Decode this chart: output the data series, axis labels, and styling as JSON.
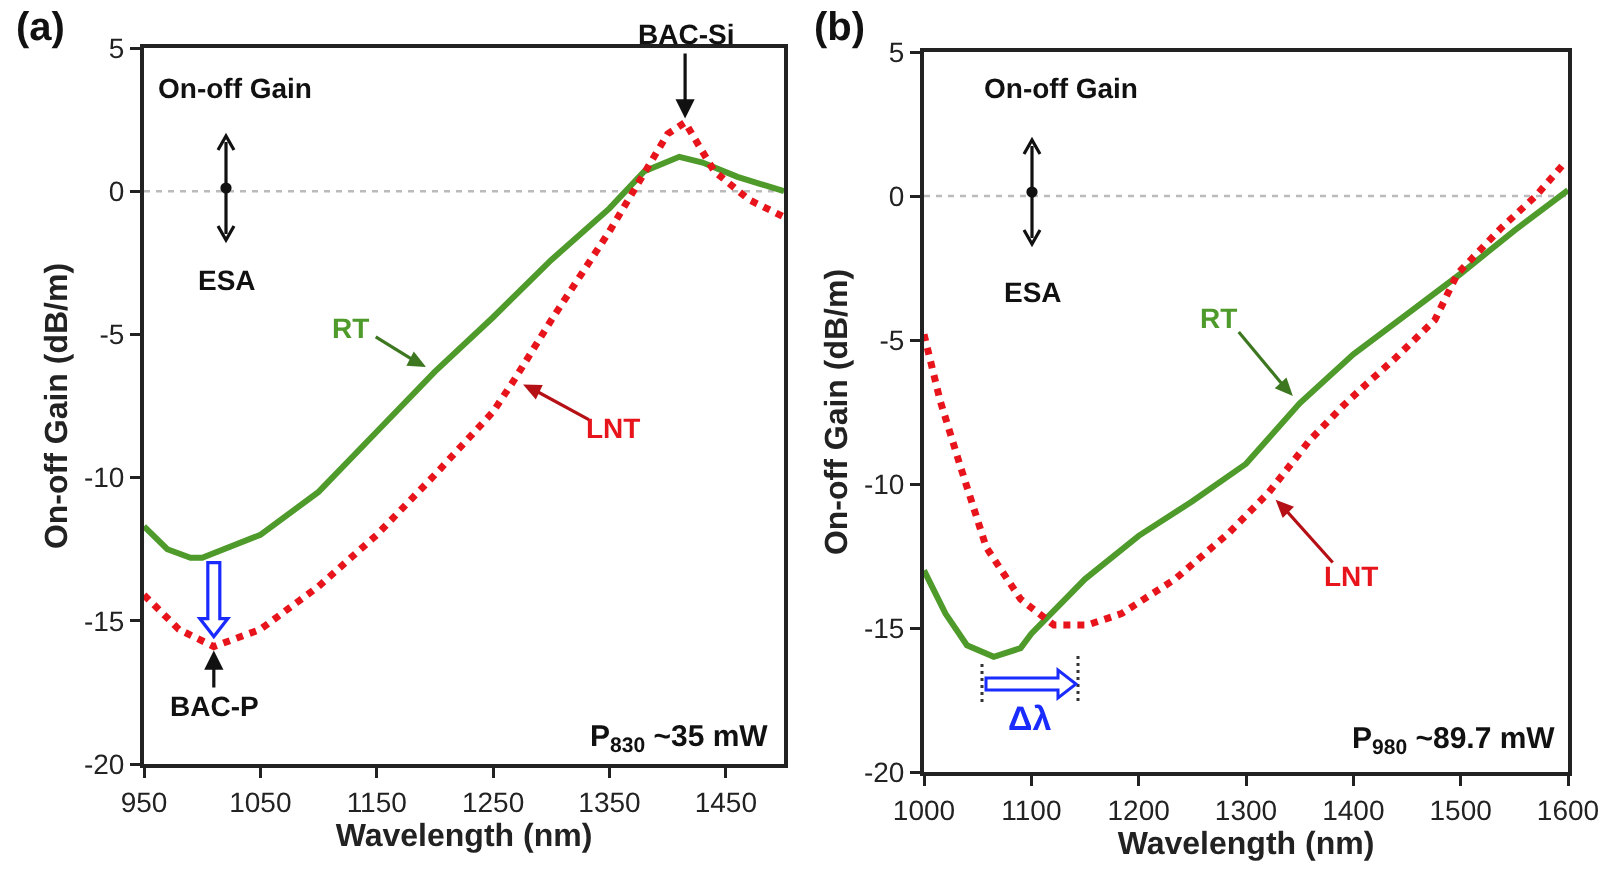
{
  "chart_data": [
    {
      "type": "line",
      "xlabel": "Wavelength (nm)",
      "ylabel": "On-off Gain (dB/m)",
      "xlim": [
        950,
        1500
      ],
      "xticks": [
        950,
        1050,
        1150,
        1250,
        1350,
        1450
      ],
      "ylim": [
        -20,
        5
      ],
      "yticks": [
        5,
        0,
        -5,
        -10,
        -15,
        -20
      ],
      "series": [
        {
          "name": "RT",
          "color": "#4e9a2a",
          "line_style": "solid",
          "x": [
            950,
            970,
            990,
            1000,
            1050,
            1100,
            1150,
            1200,
            1250,
            1300,
            1350,
            1380,
            1410,
            1430,
            1460,
            1500
          ],
          "values": [
            -11.7,
            -12.5,
            -12.8,
            -12.8,
            -12.0,
            -10.5,
            -8.4,
            -6.3,
            -4.4,
            -2.4,
            -0.6,
            0.7,
            1.2,
            1.0,
            0.5,
            0
          ]
        },
        {
          "name": "LNT",
          "color": "#e8141b",
          "line_style": "dotted",
          "x": [
            950,
            980,
            1010,
            1050,
            1100,
            1150,
            1200,
            1250,
            1268,
            1300,
            1350,
            1400,
            1415,
            1440,
            1470,
            1500
          ],
          "values": [
            -14.1,
            -15.3,
            -15.9,
            -15.3,
            -13.8,
            -12.0,
            -9.9,
            -7.7,
            -6.6,
            -4.5,
            -1.4,
            2.0,
            2.4,
            0.7,
            -0.3,
            -0.9
          ]
        }
      ],
      "ref_lines": [
        {
          "axis": "y",
          "value": 0,
          "color": "#bbbbbb",
          "line_style": "dotted"
        }
      ],
      "annotations": [
        "(a)",
        "On-off Gain",
        "ESA",
        "P$_{830}$ ~35 mW",
        {
          "text": "BAC-Si",
          "x": 1415,
          "y": 2.4
        },
        {
          "text": "BAC-P",
          "x": 1010,
          "y": -15.9
        }
      ]
    },
    {
      "type": "line",
      "xlabel": "Wavelength (nm)",
      "ylabel": "On-off Gain (dB/m)",
      "xlim": [
        1000,
        1600
      ],
      "xticks": [
        1000,
        1100,
        1200,
        1300,
        1400,
        1500,
        1600
      ],
      "ylim": [
        -20,
        5
      ],
      "yticks": [
        5,
        0,
        -5,
        -10,
        -15,
        -20
      ],
      "series": [
        {
          "name": "RT",
          "color": "#4e9a2a",
          "line_style": "solid",
          "x": [
            1000,
            1020,
            1040,
            1065,
            1090,
            1100,
            1150,
            1200,
            1250,
            1300,
            1350,
            1400,
            1450,
            1500,
            1550,
            1600
          ],
          "values": [
            -13.0,
            -14.5,
            -15.6,
            -16.0,
            -15.7,
            -15.2,
            -13.3,
            -11.8,
            -10.6,
            -9.3,
            -7.2,
            -5.5,
            -4.1,
            -2.7,
            -1.2,
            0.2
          ]
        },
        {
          "name": "LNT",
          "color": "#e8141b",
          "line_style": "dotted",
          "x": [
            1000,
            1015,
            1034,
            1058,
            1090,
            1121,
            1152,
            1184,
            1234,
            1284,
            1321,
            1359,
            1390,
            1413,
            1440,
            1476,
            1497,
            1538,
            1570,
            1598
          ],
          "values": [
            -4.8,
            -7.1,
            -9.4,
            -12.2,
            -14.0,
            -14.9,
            -14.9,
            -14.5,
            -13.3,
            -11.7,
            -10.3,
            -8.5,
            -7.3,
            -6.5,
            -5.6,
            -4.3,
            -2.7,
            -1.1,
            0,
            1.2
          ]
        }
      ],
      "ref_lines": [
        {
          "axis": "y",
          "value": 0,
          "color": "#bbbbbb",
          "line_style": "dotted"
        }
      ],
      "annotations": [
        "(b)",
        "On-off Gain",
        "ESA",
        "P$_{980}$ ~89.7 mW",
        "Δλ"
      ]
    }
  ]
}
